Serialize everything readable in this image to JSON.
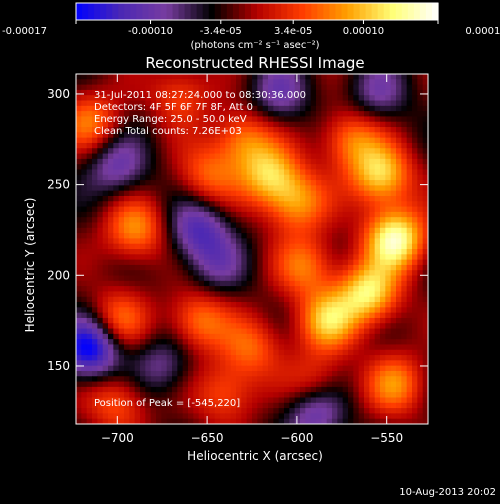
{
  "chart_data": {
    "type": "heatmap",
    "title": "Reconstructed RHESSI Image",
    "xlabel": "Heliocentric X (arcsec)",
    "ylabel": "Heliocentric Y (arcsec)",
    "xlim": [
      -723,
      -527
    ],
    "ylim": [
      118,
      311
    ],
    "x_ticks": [
      {
        "value": -700,
        "label": "−700"
      },
      {
        "value": -650,
        "label": "−650"
      },
      {
        "value": -600,
        "label": "−600"
      },
      {
        "value": -550,
        "label": "−550"
      }
    ],
    "y_ticks": [
      {
        "value": 150,
        "label": "150"
      },
      {
        "value": 200,
        "label": "200"
      },
      {
        "value": 250,
        "label": "250"
      },
      {
        "value": 300,
        "label": "300"
      }
    ],
    "annotations": [
      "31-Jul-2011 08:27:24.000 to 08:30:36.000",
      "Detectors: 4F 5F 6F 7F 8F, Att 0",
      "Energy Range: 25.0 - 50.0 keV",
      "Clean    Total counts: 7.26E+03"
    ],
    "peak_label": "Position of Peak = [-545,220]",
    "peak": [
      -545,
      220
    ],
    "colorbar": {
      "min": -0.00017,
      "max": 0.00017,
      "tick_labels": [
        "-0.00017",
        "-0.00010",
        "-3.4e-05",
        "3.4e-05",
        "0.00010",
        "0.00017"
      ],
      "unit_label": "(photons cm⁻² s⁻¹ asec⁻²)"
    },
    "colormap": [
      "#0000ff",
      "#4b28b4",
      "#783ca0",
      "#000000",
      "#b40000",
      "#ff3c00",
      "#ffa000",
      "#ffff78",
      "#ffffff"
    ],
    "sources": [
      {
        "x": -545,
        "y": 220,
        "amp": 1.0
      },
      {
        "x": -553,
        "y": 255,
        "amp": 0.8
      },
      {
        "x": -560,
        "y": 190,
        "amp": 0.85
      },
      {
        "x": -583,
        "y": 175,
        "amp": 0.7
      },
      {
        "x": -570,
        "y": 275,
        "amp": 0.55
      },
      {
        "x": -600,
        "y": 240,
        "amp": 0.6
      },
      {
        "x": -595,
        "y": 205,
        "amp": 0.5
      },
      {
        "x": -615,
        "y": 255,
        "amp": 0.7
      },
      {
        "x": -630,
        "y": 275,
        "amp": 0.55
      },
      {
        "x": -650,
        "y": 255,
        "amp": 0.45
      },
      {
        "x": -655,
        "y": 175,
        "amp": 0.55
      },
      {
        "x": -690,
        "y": 225,
        "amp": 0.6
      },
      {
        "x": -715,
        "y": 285,
        "amp": 0.5
      },
      {
        "x": -665,
        "y": 300,
        "amp": 0.4
      },
      {
        "x": -700,
        "y": 175,
        "amp": 0.5
      },
      {
        "x": -700,
        "y": 130,
        "amp": 0.45
      },
      {
        "x": -640,
        "y": 135,
        "amp": 0.45
      },
      {
        "x": -590,
        "y": 140,
        "amp": 0.4
      },
      {
        "x": -545,
        "y": 140,
        "amp": 0.55
      },
      {
        "x": -625,
        "y": 160,
        "amp": 0.45
      },
      {
        "x": -715,
        "y": 160,
        "amp": -0.9
      },
      {
        "x": -655,
        "y": 225,
        "amp": -0.55
      },
      {
        "x": -700,
        "y": 260,
        "amp": -0.45
      },
      {
        "x": -675,
        "y": 150,
        "amp": -0.35
      },
      {
        "x": -610,
        "y": 300,
        "amp": -0.4
      },
      {
        "x": -645,
        "y": 205,
        "amp": -0.3
      },
      {
        "x": -590,
        "y": 125,
        "amp": -0.55
      },
      {
        "x": -555,
        "y": 300,
        "amp": -0.35
      }
    ]
  },
  "footer": {
    "timestamp": "10-Aug-2013 20:02"
  }
}
